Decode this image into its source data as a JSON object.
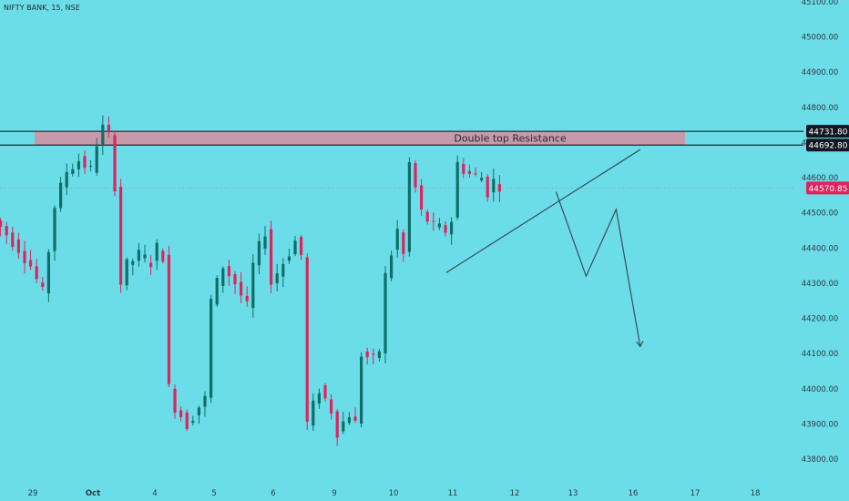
{
  "chart_data": {
    "type": "candlestick",
    "title": "NIFTY BANK, 15, NSE",
    "xlabel": "",
    "ylabel": "",
    "ylim": [
      43740,
      45120
    ],
    "y_ticks": [
      "43800.00",
      "43900.00",
      "44000.00",
      "44100.00",
      "44200.00",
      "44300.00",
      "44400.00",
      "44500.00",
      "44600.00",
      "44700.00",
      "44800.00",
      "44900.00",
      "45000.00",
      "45100.00"
    ],
    "x_ticks": [
      {
        "label": "29",
        "pos": 0
      },
      {
        "label": "Oct",
        "pos": 1
      },
      {
        "label": "4",
        "pos": 2
      },
      {
        "label": "5",
        "pos": 3
      },
      {
        "label": "6",
        "pos": 4
      },
      {
        "label": "9",
        "pos": 5
      },
      {
        "label": "10",
        "pos": 6
      },
      {
        "label": "11",
        "pos": 7
      },
      {
        "label": "12",
        "pos": 8
      },
      {
        "label": "13",
        "pos": 9
      },
      {
        "label": "16",
        "pos": 10
      },
      {
        "label": "17",
        "pos": 11
      },
      {
        "label": "18",
        "pos": 12
      }
    ],
    "price_levels": [
      {
        "label": "44731.80",
        "value": 44731.8,
        "style": "dark"
      },
      {
        "label": "44692.80",
        "value": 44692.8,
        "style": "dark"
      },
      {
        "label": "44570.85",
        "value": 44570.85,
        "style": "current"
      }
    ],
    "resistance_zone": {
      "label": "Double top Resistance",
      "low": 44692.8,
      "high": 44731.8
    },
    "colors": {
      "background": "#6BDDE8",
      "up": "#0f6f68",
      "down": "#e0235e",
      "zone": "#c79aa9",
      "line": "#3b4a5a",
      "current": "#e0235e"
    },
    "anchors": [
      [
        0,
        44480
      ],
      [
        4,
        44400
      ],
      [
        6,
        44350
      ],
      [
        8,
        44270
      ],
      [
        10,
        44520
      ],
      [
        12,
        44620
      ],
      [
        14,
        44650
      ],
      [
        16,
        44620
      ],
      [
        17,
        44700
      ],
      [
        18,
        44740
      ],
      [
        19,
        44720
      ],
      [
        20,
        44580
      ],
      [
        21,
        44300
      ],
      [
        22,
        44350
      ],
      [
        24,
        44380
      ],
      [
        26,
        44360
      ],
      [
        27,
        44400
      ],
      [
        28,
        44380
      ],
      [
        29,
        44000
      ],
      [
        30,
        43950
      ],
      [
        32,
        43900
      ],
      [
        34,
        43950
      ],
      [
        35,
        43970
      ],
      [
        36,
        44250
      ],
      [
        38,
        44350
      ],
      [
        40,
        44300
      ],
      [
        42,
        44230
      ],
      [
        43,
        44350
      ],
      [
        45,
        44450
      ],
      [
        46,
        44300
      ],
      [
        48,
        44360
      ],
      [
        50,
        44420
      ],
      [
        51,
        44380
      ],
      [
        52,
        43900
      ],
      [
        54,
        44000
      ],
      [
        56,
        43940
      ],
      [
        57,
        43880
      ],
      [
        59,
        43930
      ],
      [
        60,
        43900
      ],
      [
        61,
        44100
      ],
      [
        63,
        44080
      ],
      [
        64,
        44110
      ],
      [
        65,
        44320
      ],
      [
        67,
        44450
      ],
      [
        68,
        44380
      ],
      [
        69,
        44640
      ],
      [
        71,
        44500
      ],
      [
        73,
        44460
      ],
      [
        75,
        44450
      ],
      [
        76,
        44480
      ],
      [
        77,
        44640
      ],
      [
        79,
        44610
      ],
      [
        81,
        44600
      ],
      [
        82,
        44560
      ],
      [
        83,
        44590
      ],
      [
        84,
        44580
      ]
    ],
    "trendline": {
      "from": [
        68,
        44330
      ],
      "to": [
        103,
        44680
      ]
    },
    "projection": [
      [
        84,
        44560
      ],
      [
        89,
        44320
      ],
      [
        94,
        44510
      ],
      [
        98,
        44120
      ]
    ]
  }
}
